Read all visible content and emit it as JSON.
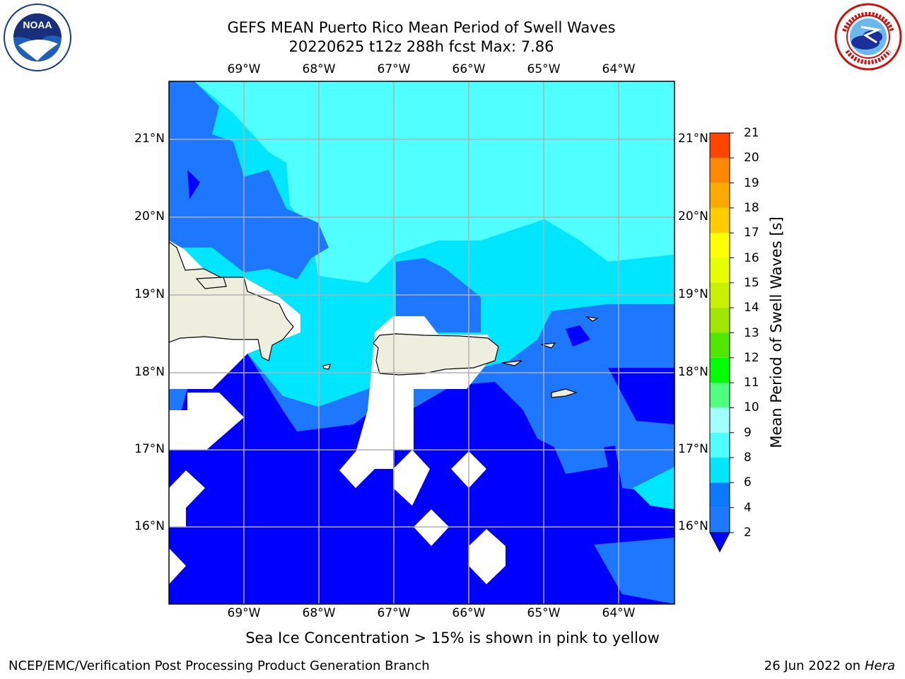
{
  "title": {
    "line1": "GEFS MEAN Puerto Rico Mean Period of Swell Waves",
    "line2": "20220625 t12z 288h fcst   Max: 7.86"
  },
  "longitude_labels": [
    "69°W",
    "68°W",
    "67°W",
    "66°W",
    "65°W",
    "64°W"
  ],
  "latitude_labels": [
    "21°N",
    "20°N",
    "19°N",
    "18°N",
    "17°N",
    "16°N"
  ],
  "colorbar": {
    "label": "Mean Period of Swell Waves [s]",
    "ticks": [
      "2",
      "4",
      "6",
      "8",
      "9",
      "10",
      "11",
      "12",
      "13",
      "14",
      "15",
      "16",
      "17",
      "18",
      "19",
      "20",
      "21"
    ],
    "colors": [
      "#0000ff",
      "#0a78ff",
      "#00e6ff",
      "#50ffff",
      "#a0ffff",
      "#50ff80",
      "#00ff00",
      "#50e600",
      "#a0e600",
      "#c8f000",
      "#e6ff00",
      "#ffff00",
      "#ffcc00",
      "#ffaa00",
      "#ff8800",
      "#ff4400",
      "#ff0000"
    ],
    "under_color": "#0000ff"
  },
  "map_colors": {
    "ocean_lt2": "#0000ff",
    "ocean_2_4": "#1e78ff",
    "ocean_4_6": "#00e6ff",
    "ocean_6_8": "#50ffff",
    "land": "#eeeedf",
    "missing": "#ffffff",
    "grid": "#b0b0b0"
  },
  "logos": {
    "left": "noaa-logo",
    "right": "nws-logo"
  },
  "note": "Sea Ice Concentration > 15% is shown in pink to yellow",
  "footer": {
    "left": "NCEP/EMC/Verification Post Processing Product Generation Branch",
    "date": "26 Jun 2022 on",
    "host": "Hera"
  }
}
